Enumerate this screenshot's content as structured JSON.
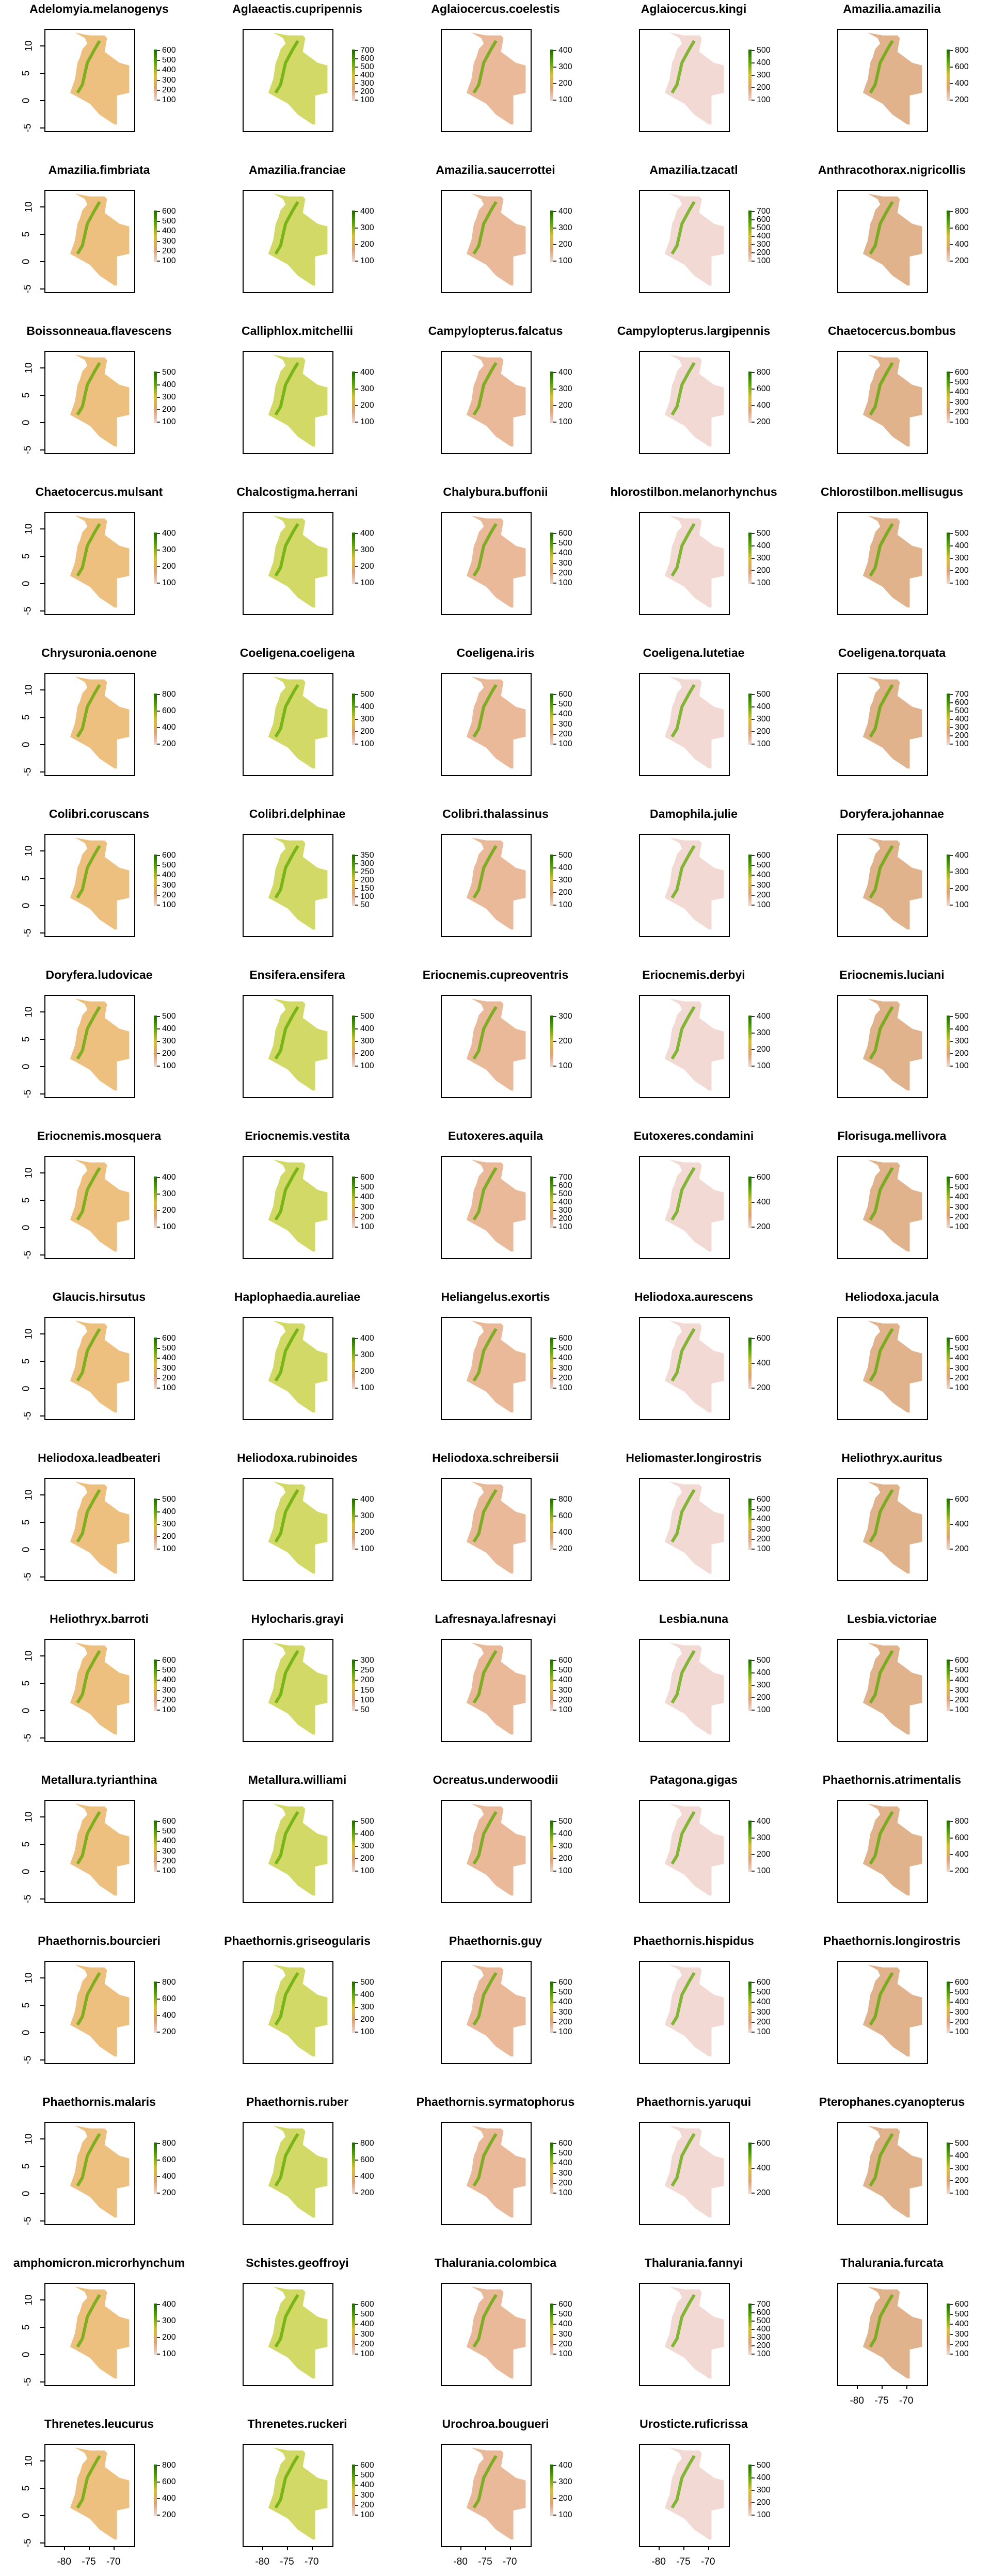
{
  "chart_data": {
    "type": "heatmap",
    "description_axes": {
      "x_ticks": [
        -80,
        -75,
        -70
      ],
      "y_ticks": [
        10,
        5,
        0,
        -5
      ]
    },
    "panels": [
      {
        "title": "Adelomyia.melanogenys",
        "legend": [
          "600",
          "500",
          "400",
          "300",
          "200",
          "100"
        ]
      },
      {
        "title": "Aglaeactis.cupripennis",
        "legend": [
          "700",
          "600",
          "500",
          "400",
          "300",
          "200",
          "100"
        ]
      },
      {
        "title": "Aglaiocercus.coelestis",
        "legend": [
          "400",
          "300",
          "200",
          "100"
        ]
      },
      {
        "title": "Aglaiocercus.kingi",
        "legend": [
          "500",
          "400",
          "300",
          "200",
          "100"
        ]
      },
      {
        "title": "Amazilia.amazilia",
        "legend": [
          "800",
          "600",
          "400",
          "200"
        ]
      },
      {
        "title": "Amazilia.fimbriata",
        "legend": [
          "600",
          "500",
          "400",
          "300",
          "200",
          "100"
        ]
      },
      {
        "title": "Amazilia.franciae",
        "legend": [
          "400",
          "300",
          "200",
          "100"
        ]
      },
      {
        "title": "Amazilia.saucerrottei",
        "legend": [
          "400",
          "300",
          "200",
          "100"
        ]
      },
      {
        "title": "Amazilia.tzacatl",
        "legend": [
          "700",
          "600",
          "500",
          "400",
          "300",
          "200",
          "100"
        ]
      },
      {
        "title": "Anthracothorax.nigricollis",
        "legend": [
          "800",
          "600",
          "400",
          "200"
        ]
      },
      {
        "title": "Boissonneaua.flavescens",
        "legend": [
          "500",
          "400",
          "300",
          "200",
          "100"
        ]
      },
      {
        "title": "Calliphlox.mitchellii",
        "legend": [
          "400",
          "300",
          "200",
          "100"
        ]
      },
      {
        "title": "Campylopterus.falcatus",
        "legend": [
          "400",
          "300",
          "200",
          "100"
        ]
      },
      {
        "title": "Campylopterus.largipennis",
        "legend": [
          "800",
          "600",
          "400",
          "200"
        ]
      },
      {
        "title": "Chaetocercus.bombus",
        "legend": [
          "600",
          "500",
          "400",
          "300",
          "200",
          "100"
        ]
      },
      {
        "title": "Chaetocercus.mulsant",
        "legend": [
          "400",
          "300",
          "200",
          "100"
        ]
      },
      {
        "title": "Chalcostigma.herrani",
        "legend": [
          "400",
          "300",
          "200",
          "100"
        ]
      },
      {
        "title": "Chalybura.buffonii",
        "legend": [
          "600",
          "500",
          "400",
          "300",
          "200",
          "100"
        ]
      },
      {
        "title": "hlorostilbon.melanorhynchus",
        "legend": [
          "500",
          "400",
          "300",
          "200",
          "100"
        ]
      },
      {
        "title": "Chlorostilbon.mellisugus",
        "legend": [
          "500",
          "400",
          "300",
          "200",
          "100"
        ]
      },
      {
        "title": "Chrysuronia.oenone",
        "legend": [
          "800",
          "600",
          "400",
          "200"
        ]
      },
      {
        "title": "Coeligena.coeligena",
        "legend": [
          "500",
          "400",
          "300",
          "200",
          "100"
        ]
      },
      {
        "title": "Coeligena.iris",
        "legend": [
          "600",
          "500",
          "400",
          "300",
          "200",
          "100"
        ]
      },
      {
        "title": "Coeligena.lutetiae",
        "legend": [
          "500",
          "400",
          "300",
          "200",
          "100"
        ]
      },
      {
        "title": "Coeligena.torquata",
        "legend": [
          "700",
          "600",
          "500",
          "400",
          "300",
          "200",
          "100"
        ]
      },
      {
        "title": "Colibri.coruscans",
        "legend": [
          "600",
          "500",
          "400",
          "300",
          "200",
          "100"
        ]
      },
      {
        "title": "Colibri.delphinae",
        "legend": [
          "350",
          "300",
          "250",
          "200",
          "150",
          "100",
          "50"
        ]
      },
      {
        "title": "Colibri.thalassinus",
        "legend": [
          "500",
          "400",
          "300",
          "200",
          "100"
        ]
      },
      {
        "title": "Damophila.julie",
        "legend": [
          "600",
          "500",
          "400",
          "300",
          "200",
          "100"
        ]
      },
      {
        "title": "Doryfera.johannae",
        "legend": [
          "400",
          "300",
          "200",
          "100"
        ]
      },
      {
        "title": "Doryfera.ludovicae",
        "legend": [
          "500",
          "400",
          "300",
          "200",
          "100"
        ]
      },
      {
        "title": "Ensifera.ensifera",
        "legend": [
          "500",
          "400",
          "300",
          "200",
          "100"
        ]
      },
      {
        "title": "Eriocnemis.cupreoventris",
        "legend": [
          "300",
          "200",
          "100"
        ]
      },
      {
        "title": "Eriocnemis.derbyi",
        "legend": [
          "400",
          "300",
          "200",
          "100"
        ]
      },
      {
        "title": "Eriocnemis.luciani",
        "legend": [
          "500",
          "400",
          "300",
          "200",
          "100"
        ]
      },
      {
        "title": "Eriocnemis.mosquera",
        "legend": [
          "400",
          "300",
          "200",
          "100"
        ]
      },
      {
        "title": "Eriocnemis.vestita",
        "legend": [
          "600",
          "500",
          "400",
          "300",
          "200",
          "100"
        ]
      },
      {
        "title": "Eutoxeres.aquila",
        "legend": [
          "700",
          "600",
          "500",
          "400",
          "300",
          "200",
          "100"
        ]
      },
      {
        "title": "Eutoxeres.condamini",
        "legend": [
          "600",
          "400",
          "200"
        ]
      },
      {
        "title": "Florisuga.mellivora",
        "legend": [
          "600",
          "500",
          "400",
          "300",
          "200",
          "100"
        ]
      },
      {
        "title": "Glaucis.hirsutus",
        "legend": [
          "600",
          "500",
          "400",
          "300",
          "200",
          "100"
        ]
      },
      {
        "title": "Haplophaedia.aureliae",
        "legend": [
          "400",
          "300",
          "200",
          "100"
        ]
      },
      {
        "title": "Heliangelus.exortis",
        "legend": [
          "600",
          "500",
          "400",
          "300",
          "200",
          "100"
        ]
      },
      {
        "title": "Heliodoxa.aurescens",
        "legend": [
          "600",
          "400",
          "200"
        ]
      },
      {
        "title": "Heliodoxa.jacula",
        "legend": [
          "600",
          "500",
          "400",
          "300",
          "200",
          "100"
        ]
      },
      {
        "title": "Heliodoxa.leadbeateri",
        "legend": [
          "500",
          "400",
          "300",
          "200",
          "100"
        ]
      },
      {
        "title": "Heliodoxa.rubinoides",
        "legend": [
          "400",
          "300",
          "200",
          "100"
        ]
      },
      {
        "title": "Heliodoxa.schreibersii",
        "legend": [
          "800",
          "600",
          "400",
          "200"
        ]
      },
      {
        "title": "Heliomaster.longirostris",
        "legend": [
          "600",
          "500",
          "400",
          "300",
          "200",
          "100"
        ]
      },
      {
        "title": "Heliothryx.auritus",
        "legend": [
          "600",
          "400",
          "200"
        ]
      },
      {
        "title": "Heliothryx.barroti",
        "legend": [
          "600",
          "500",
          "400",
          "300",
          "200",
          "100"
        ]
      },
      {
        "title": "Hylocharis.grayi",
        "legend": [
          "300",
          "250",
          "200",
          "150",
          "100",
          "50"
        ]
      },
      {
        "title": "Lafresnaya.lafresnayi",
        "legend": [
          "600",
          "500",
          "400",
          "300",
          "200",
          "100"
        ]
      },
      {
        "title": "Lesbia.nuna",
        "legend": [
          "500",
          "400",
          "300",
          "200",
          "100"
        ]
      },
      {
        "title": "Lesbia.victoriae",
        "legend": [
          "600",
          "500",
          "400",
          "300",
          "200",
          "100"
        ]
      },
      {
        "title": "Metallura.tyrianthina",
        "legend": [
          "600",
          "500",
          "400",
          "300",
          "200",
          "100"
        ]
      },
      {
        "title": "Metallura.williami",
        "legend": [
          "500",
          "400",
          "300",
          "200",
          "100"
        ]
      },
      {
        "title": "Ocreatus.underwoodii",
        "legend": [
          "500",
          "400",
          "300",
          "200",
          "100"
        ]
      },
      {
        "title": "Patagona.gigas",
        "legend": [
          "400",
          "300",
          "200",
          "100"
        ]
      },
      {
        "title": "Phaethornis.atrimentalis",
        "legend": [
          "800",
          "600",
          "400",
          "200"
        ]
      },
      {
        "title": "Phaethornis.bourcieri",
        "legend": [
          "800",
          "600",
          "400",
          "200"
        ]
      },
      {
        "title": "Phaethornis.griseogularis",
        "legend": [
          "500",
          "400",
          "300",
          "200",
          "100"
        ]
      },
      {
        "title": "Phaethornis.guy",
        "legend": [
          "600",
          "500",
          "400",
          "300",
          "200",
          "100"
        ]
      },
      {
        "title": "Phaethornis.hispidus",
        "legend": [
          "600",
          "500",
          "400",
          "300",
          "200",
          "100"
        ]
      },
      {
        "title": "Phaethornis.longirostris",
        "legend": [
          "600",
          "500",
          "400",
          "300",
          "200",
          "100"
        ]
      },
      {
        "title": "Phaethornis.malaris",
        "legend": [
          "800",
          "600",
          "400",
          "200"
        ]
      },
      {
        "title": "Phaethornis.ruber",
        "legend": [
          "800",
          "600",
          "400",
          "200"
        ]
      },
      {
        "title": "Phaethornis.syrmatophorus",
        "legend": [
          "600",
          "500",
          "400",
          "300",
          "200",
          "100"
        ]
      },
      {
        "title": "Phaethornis.yaruqui",
        "legend": [
          "600",
          "400",
          "200"
        ]
      },
      {
        "title": "Pterophanes.cyanopterus",
        "legend": [
          "500",
          "400",
          "300",
          "200",
          "100"
        ]
      },
      {
        "title": "amphomicron.microrhynchum",
        "legend": [
          "400",
          "300",
          "200",
          "100"
        ]
      },
      {
        "title": "Schistes.geoffroyi",
        "legend": [
          "600",
          "500",
          "400",
          "300",
          "200",
          "100"
        ]
      },
      {
        "title": "Thalurania.colombica",
        "legend": [
          "600",
          "500",
          "400",
          "300",
          "200",
          "100"
        ]
      },
      {
        "title": "Thalurania.fannyi",
        "legend": [
          "700",
          "600",
          "500",
          "400",
          "300",
          "200",
          "100"
        ]
      },
      {
        "title": "Thalurania.furcata",
        "legend": [
          "600",
          "500",
          "400",
          "300",
          "200",
          "100"
        ]
      },
      {
        "title": "Threnetes.leucurus",
        "legend": [
          "800",
          "600",
          "400",
          "200"
        ]
      },
      {
        "title": "Threnetes.ruckeri",
        "legend": [
          "600",
          "500",
          "400",
          "300",
          "200",
          "100"
        ]
      },
      {
        "title": "Urochroa.bougueri",
        "legend": [
          "400",
          "300",
          "200",
          "100"
        ]
      },
      {
        "title": "Urosticte.ruficrissa",
        "legend": [
          "500",
          "400",
          "300",
          "200",
          "100"
        ]
      }
    ]
  }
}
